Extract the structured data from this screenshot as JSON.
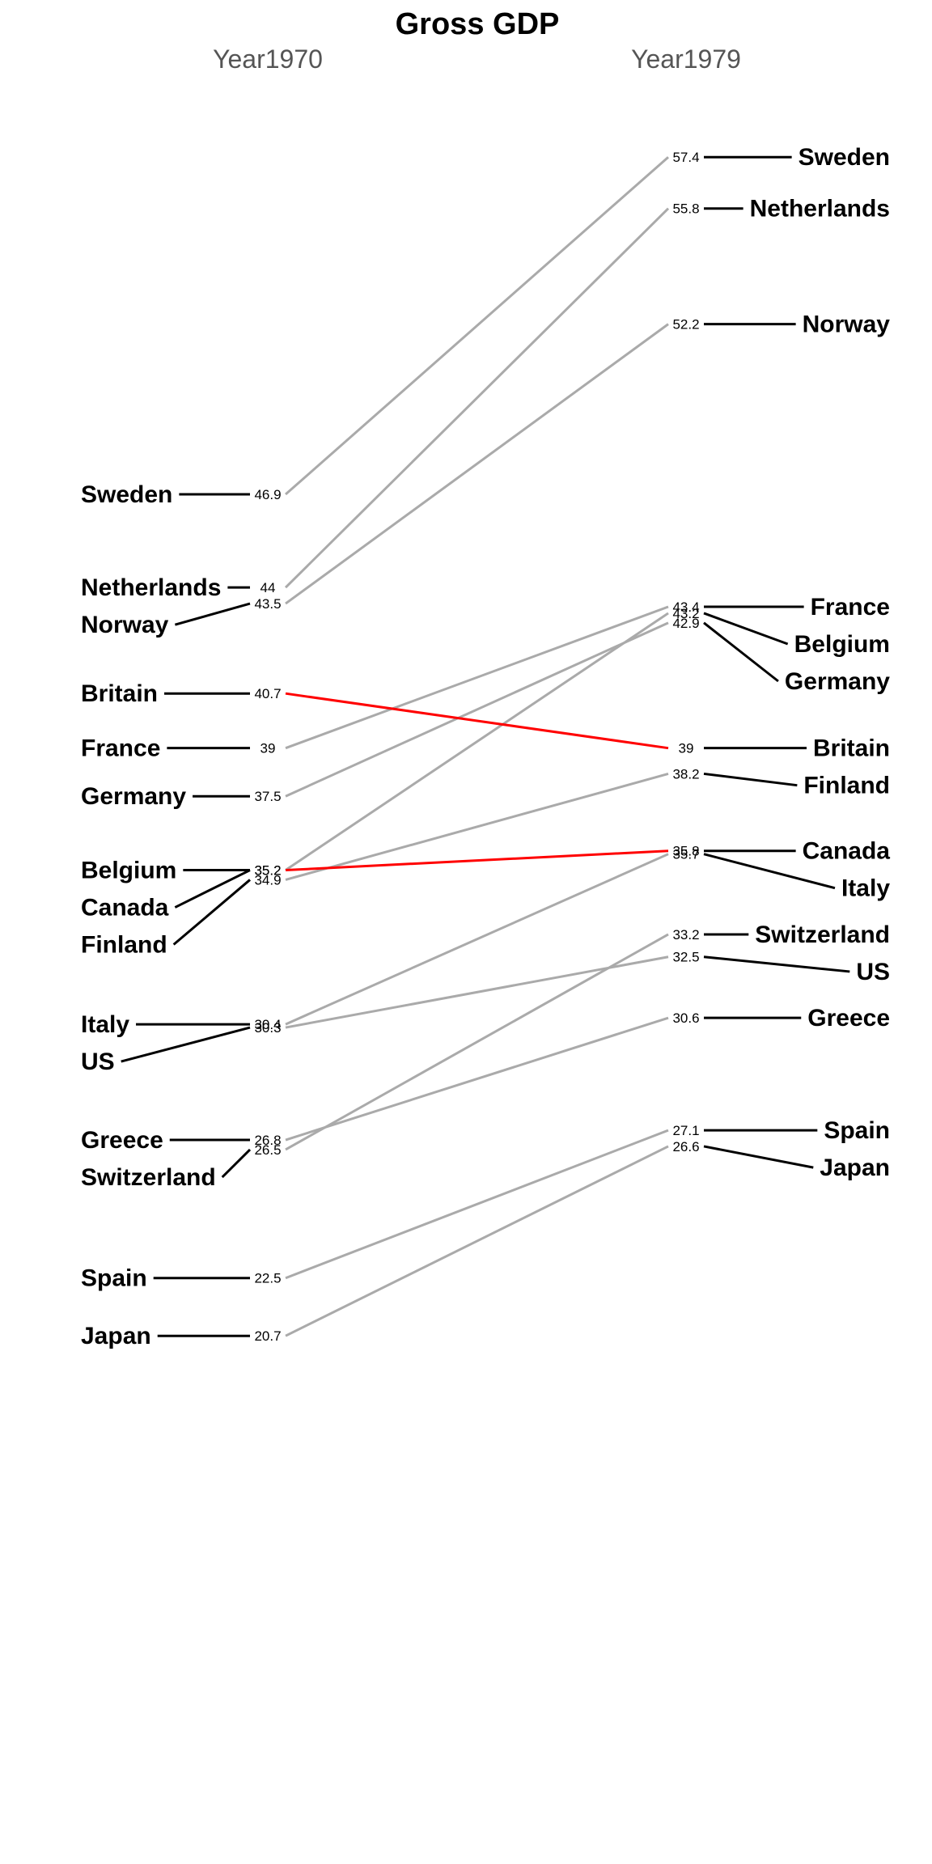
{
  "chart_data": {
    "type": "slope",
    "title": "Gross GDP",
    "columns": [
      "Year1970",
      "Year1979"
    ],
    "highlight_color": "#ff0000",
    "line_color": "#aaaaaa",
    "series": [
      {
        "name": "Sweden",
        "values": [
          46.9,
          57.4
        ]
      },
      {
        "name": "Netherlands",
        "values": [
          44,
          55.8
        ]
      },
      {
        "name": "Norway",
        "values": [
          43.5,
          52.2
        ]
      },
      {
        "name": "Britain",
        "values": [
          40.7,
          39
        ],
        "highlight": true
      },
      {
        "name": "France",
        "values": [
          39,
          43.4
        ]
      },
      {
        "name": "Germany",
        "values": [
          37.5,
          42.9
        ]
      },
      {
        "name": "Belgium",
        "values": [
          35.2,
          43.2
        ]
      },
      {
        "name": "Canada",
        "values": [
          35.2,
          35.8
        ],
        "highlight": true
      },
      {
        "name": "Finland",
        "values": [
          34.9,
          38.2
        ]
      },
      {
        "name": "Italy",
        "values": [
          30.4,
          35.7
        ]
      },
      {
        "name": "US",
        "values": [
          30.3,
          32.5
        ]
      },
      {
        "name": "Greece",
        "values": [
          26.8,
          30.6
        ]
      },
      {
        "name": "Switzerland",
        "values": [
          26.5,
          33.2
        ]
      },
      {
        "name": "Spain",
        "values": [
          22.5,
          27.1
        ]
      },
      {
        "name": "Japan",
        "values": [
          20.7,
          26.6
        ]
      }
    ]
  }
}
